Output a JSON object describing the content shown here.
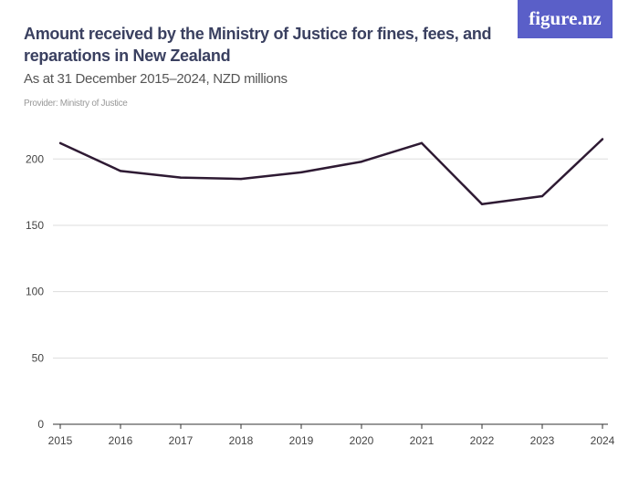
{
  "header": {
    "title": "Amount received by the Ministry of Justice for fines, fees, and reparations in New Zealand",
    "subtitle": "As at 31 December 2015–2024, NZD millions",
    "provider": "Provider: Ministry of Justice",
    "logo": "figure.nz"
  },
  "colors": {
    "line": "#2e1a33",
    "grid": "#dddddd",
    "logo_bg": "#5a5fc8"
  },
  "chart_data": {
    "type": "line",
    "title": "Amount received by the Ministry of Justice for fines, fees, and reparations in New Zealand",
    "subtitle": "As at 31 December 2015–2024, NZD millions",
    "x": [
      "2015",
      "2016",
      "2017",
      "2018",
      "2019",
      "2020",
      "2021",
      "2022",
      "2023",
      "2024"
    ],
    "series": [
      {
        "values": [
          212,
          191,
          186,
          185,
          190,
          198,
          212,
          166,
          172,
          215
        ]
      }
    ],
    "ylim": [
      0,
      220
    ],
    "yticks": [
      0,
      50,
      100,
      150,
      200
    ],
    "grid": true,
    "xlabel": "",
    "ylabel": ""
  }
}
